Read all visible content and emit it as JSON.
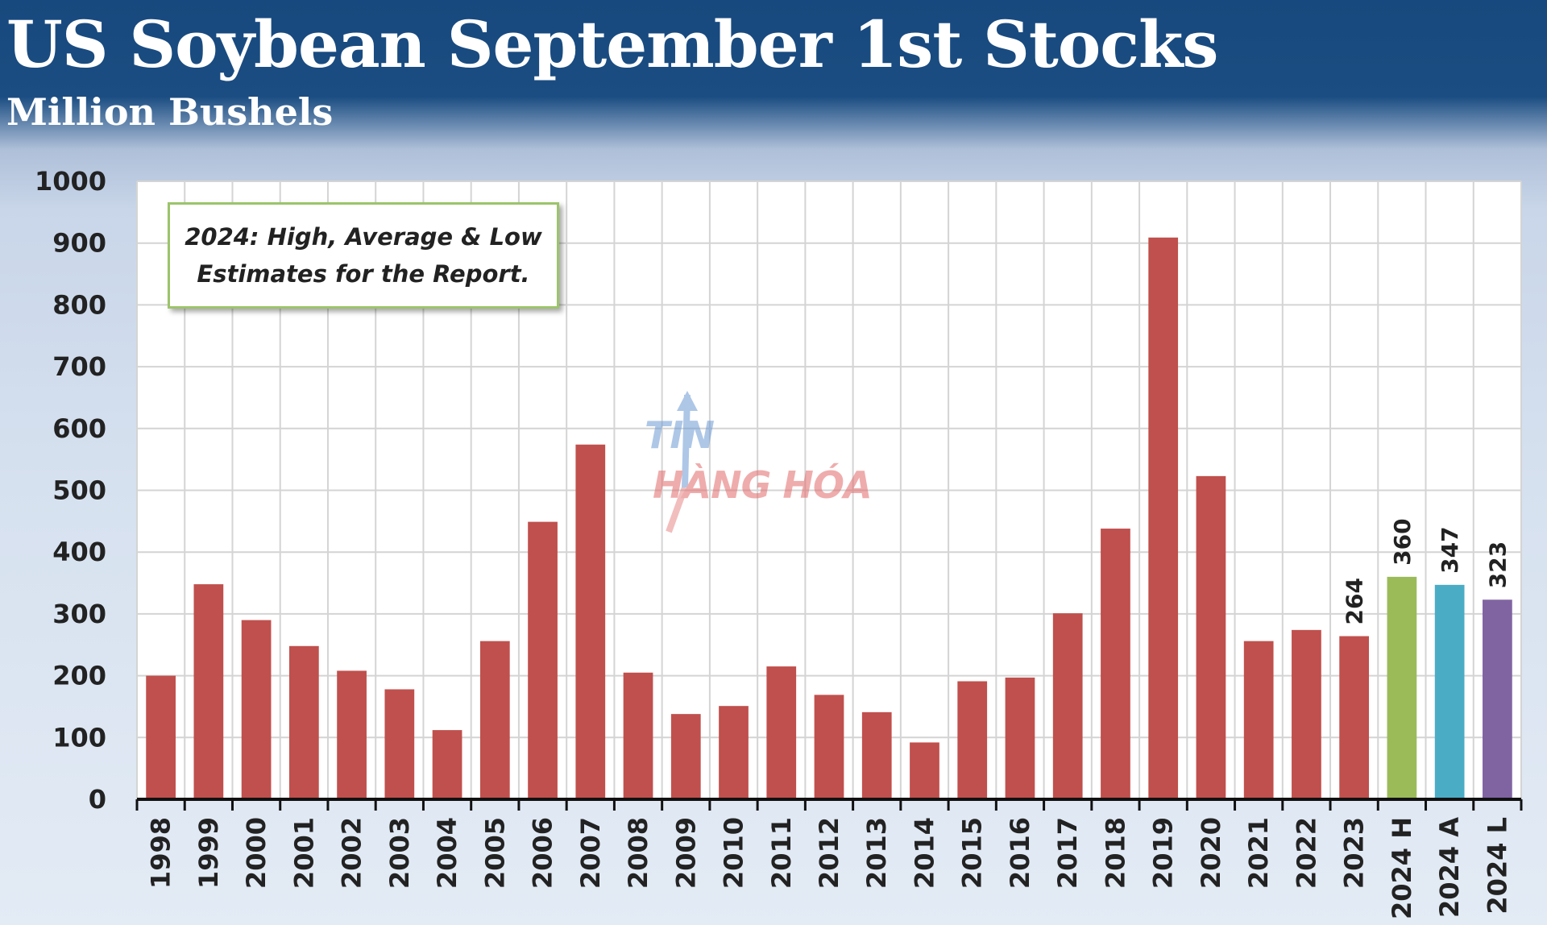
{
  "header": {
    "title": "US Soybean September 1st Stocks",
    "subtitle": "Million Bushels"
  },
  "annotation": {
    "text": "2024: High, Average & Low\nEstimates for the Report."
  },
  "watermark": {
    "line1": "TIN",
    "line2": "HÀNG HÓA"
  },
  "colors": {
    "bar_default": "#c0504d",
    "bar_high": "#9bbb59",
    "bar_average": "#4bacc6",
    "bar_low": "#8064a2",
    "grid": "#d4d4d4",
    "plot_bg": "#ffffff"
  },
  "chart_data": {
    "type": "bar",
    "title": "US Soybean September 1st Stocks",
    "subtitle": "Million Bushels",
    "xlabel": "",
    "ylabel": "",
    "ylim": [
      0,
      1000
    ],
    "yticks": [
      "0",
      "100",
      "200",
      "300",
      "400",
      "500",
      "600",
      "700",
      "800",
      "900",
      "1000"
    ],
    "grid": true,
    "categories": [
      "1998",
      "1999",
      "2000",
      "2001",
      "2002",
      "2003",
      "2004",
      "2005",
      "2006",
      "2007",
      "2008",
      "2009",
      "2010",
      "2011",
      "2012",
      "2013",
      "2014",
      "2015",
      "2016",
      "2017",
      "2018",
      "2019",
      "2020",
      "2021",
      "2022",
      "2023",
      "2024 H",
      "2024 A",
      "2024 L"
    ],
    "values": [
      200,
      348,
      290,
      248,
      208,
      178,
      112,
      256,
      449,
      574,
      205,
      138,
      151,
      215,
      169,
      141,
      92,
      191,
      197,
      301,
      438,
      909,
      523,
      256,
      274,
      264,
      360,
      347,
      323
    ],
    "bar_colors": [
      "bar_default",
      "bar_default",
      "bar_default",
      "bar_default",
      "bar_default",
      "bar_default",
      "bar_default",
      "bar_default",
      "bar_default",
      "bar_default",
      "bar_default",
      "bar_default",
      "bar_default",
      "bar_default",
      "bar_default",
      "bar_default",
      "bar_default",
      "bar_default",
      "bar_default",
      "bar_default",
      "bar_default",
      "bar_default",
      "bar_default",
      "bar_default",
      "bar_default",
      "bar_default",
      "bar_high",
      "bar_average",
      "bar_low"
    ],
    "data_labels": [
      {
        "category": "2023",
        "text": "264"
      },
      {
        "category": "2024 H",
        "text": "360"
      },
      {
        "category": "2024 A",
        "text": "347"
      },
      {
        "category": "2024 L",
        "text": "323"
      }
    ]
  }
}
